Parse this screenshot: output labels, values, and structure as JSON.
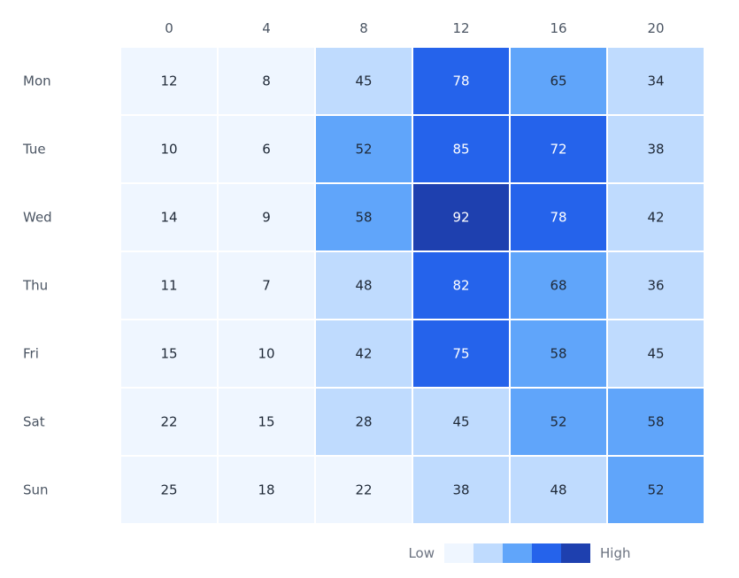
{
  "chart_data": {
    "type": "heatmap",
    "columns": [
      "0",
      "4",
      "8",
      "12",
      "16",
      "20"
    ],
    "rows": [
      "Mon",
      "Tue",
      "Wed",
      "Thu",
      "Fri",
      "Sat",
      "Sun"
    ],
    "values": [
      [
        12,
        8,
        45,
        78,
        65,
        34
      ],
      [
        10,
        6,
        52,
        85,
        72,
        38
      ],
      [
        14,
        9,
        58,
        92,
        78,
        42
      ],
      [
        11,
        7,
        48,
        82,
        68,
        36
      ],
      [
        15,
        10,
        42,
        75,
        58,
        45
      ],
      [
        22,
        15,
        28,
        45,
        52,
        58
      ],
      [
        25,
        18,
        22,
        38,
        48,
        52
      ]
    ],
    "legend": {
      "low_label": "Low",
      "high_label": "High",
      "colors": [
        "#eff6ff",
        "#bfdbfe",
        "#60a5fa",
        "#2563eb",
        "#1e40af"
      ],
      "thresholds": [
        26,
        50,
        70,
        90
      ]
    },
    "text_color_dark": "#1f2937",
    "text_color_light": "#ffffff",
    "grid_line_color": "#ffffff"
  }
}
